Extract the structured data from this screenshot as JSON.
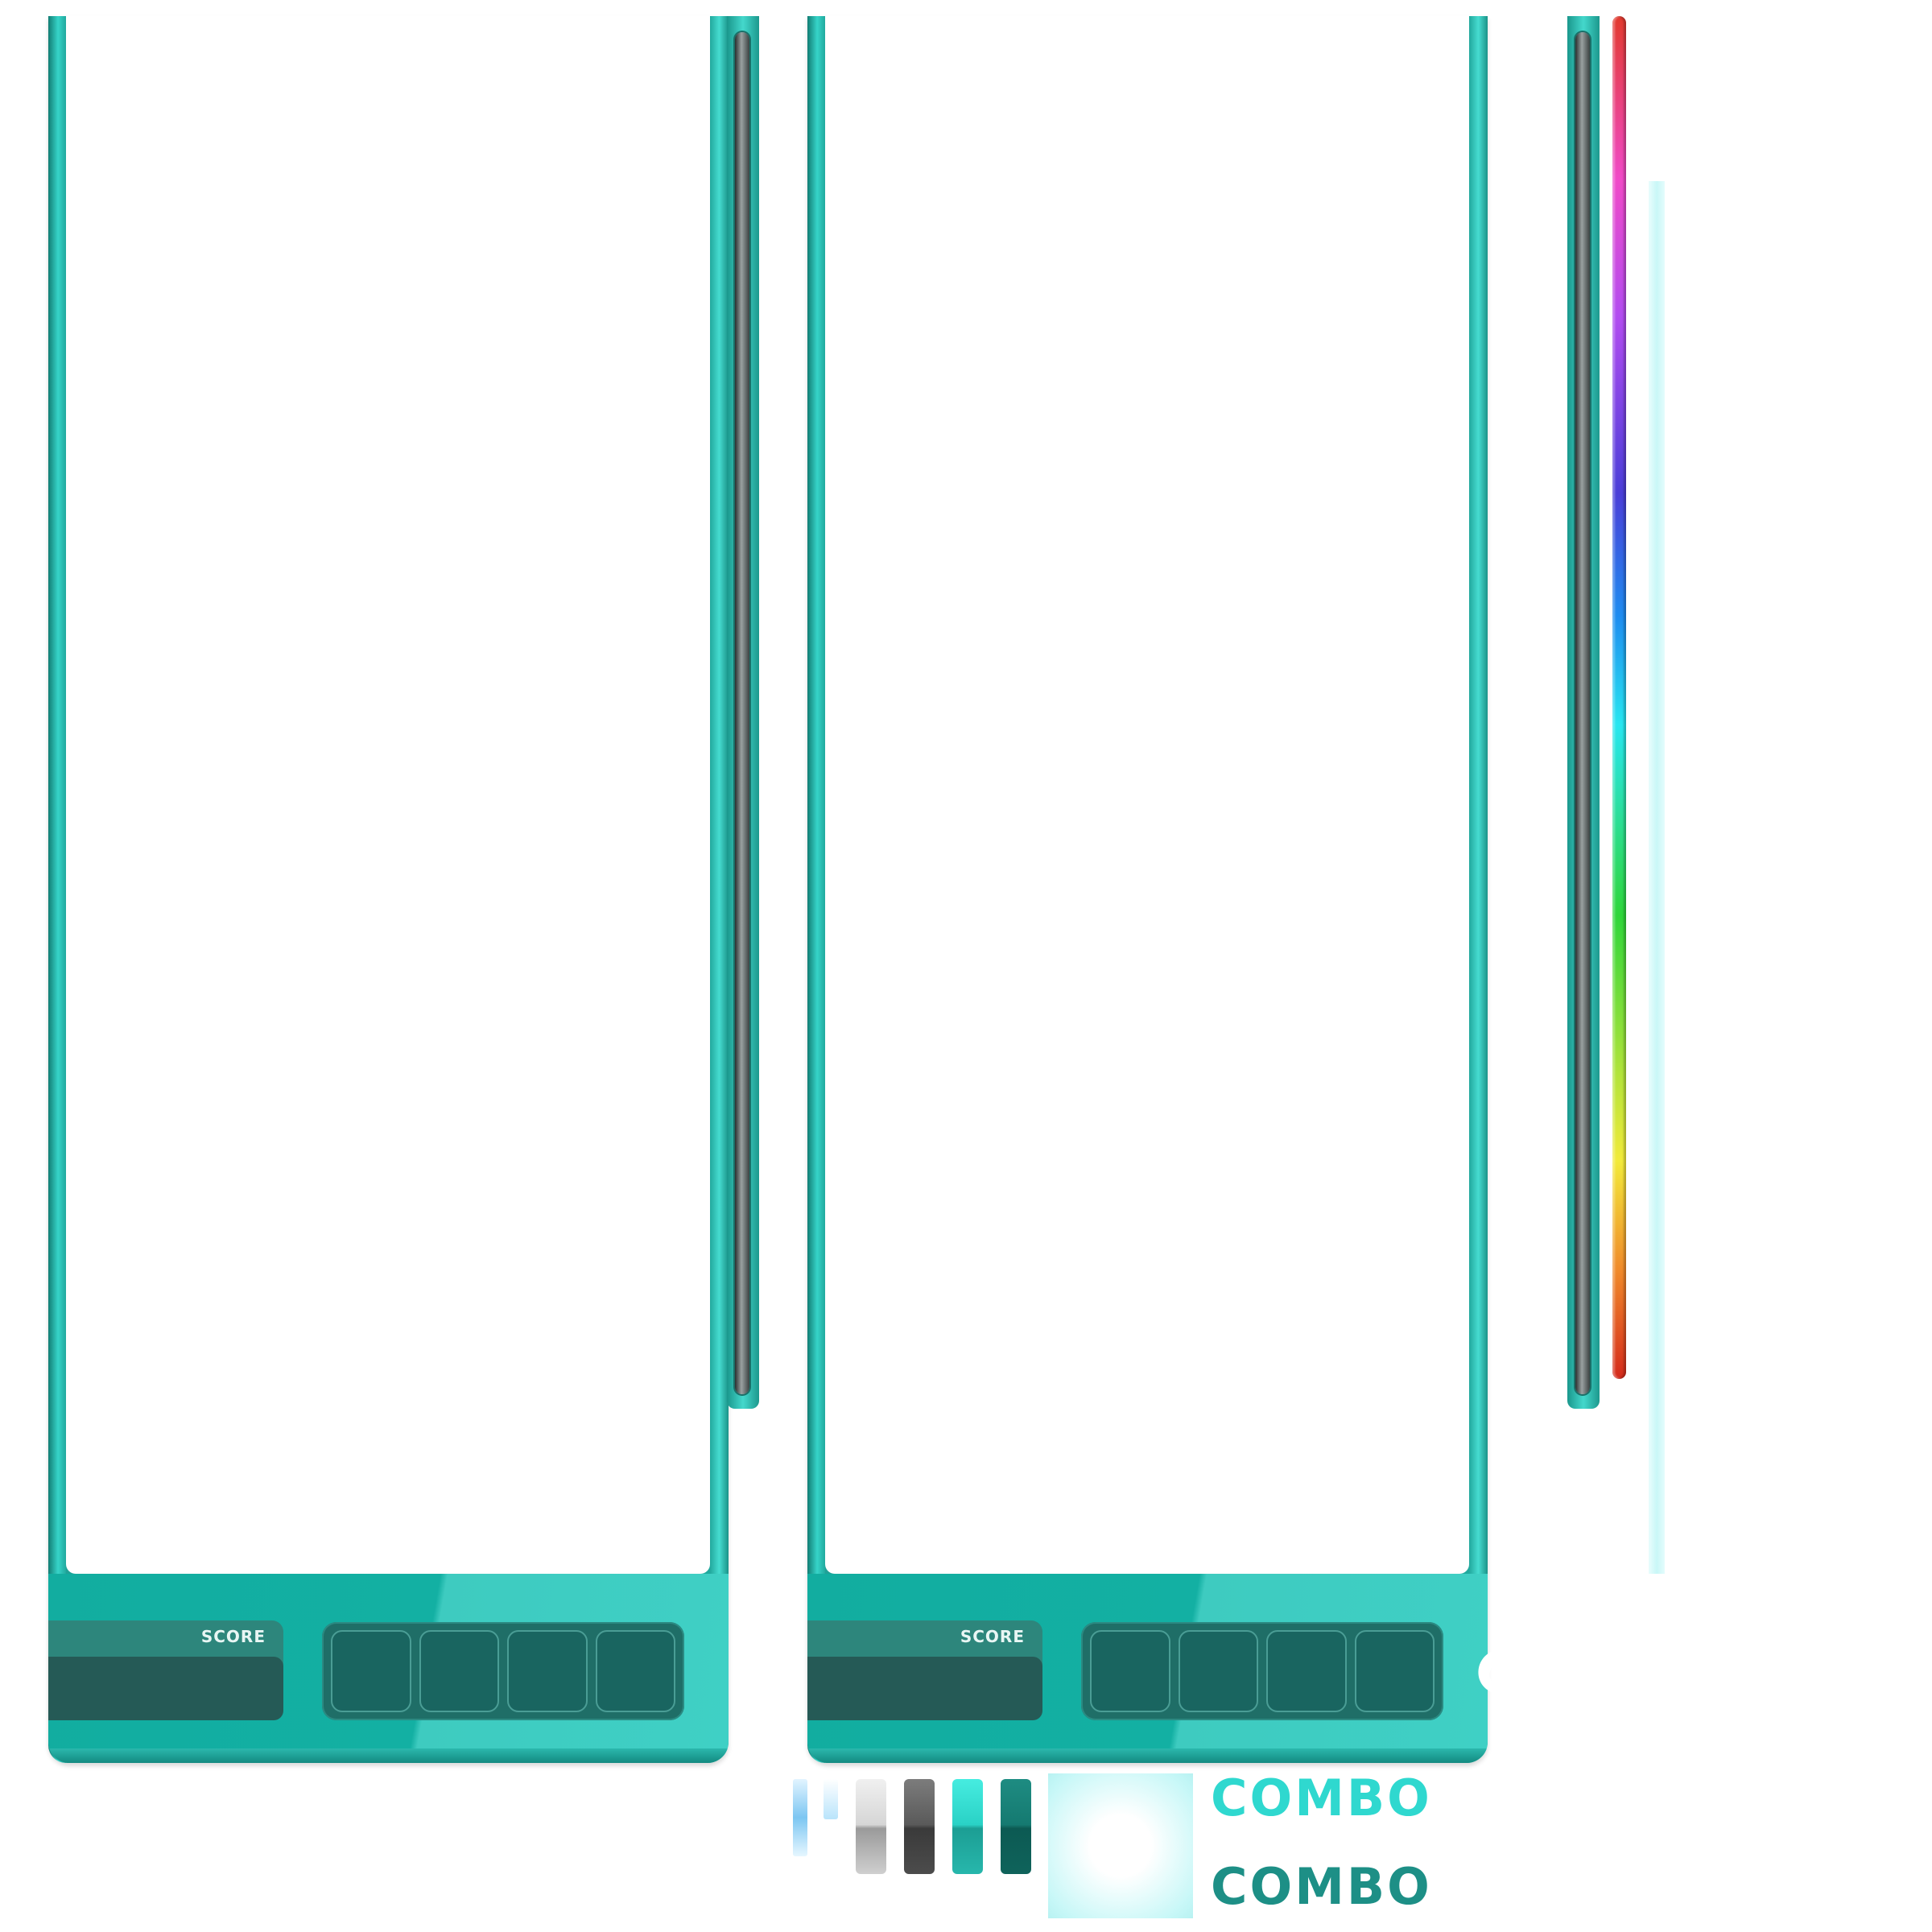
{
  "playfields": [
    {
      "score_label": "SCORE",
      "score_value": "",
      "hold_slots": 4
    },
    {
      "score_label": "SCORE",
      "score_value": "",
      "hold_slots": 4
    }
  ],
  "combo": {
    "light_label": "COMBO",
    "dark_label": "COMBO",
    "light_color": "#2fd8cf",
    "dark_color": "#1d8f86"
  },
  "colors": {
    "frame": "#1fb0a4",
    "score_panel": "#255a56",
    "slot": "#196560"
  },
  "icons": {
    "logo": "c-swirl-logo-icon"
  }
}
